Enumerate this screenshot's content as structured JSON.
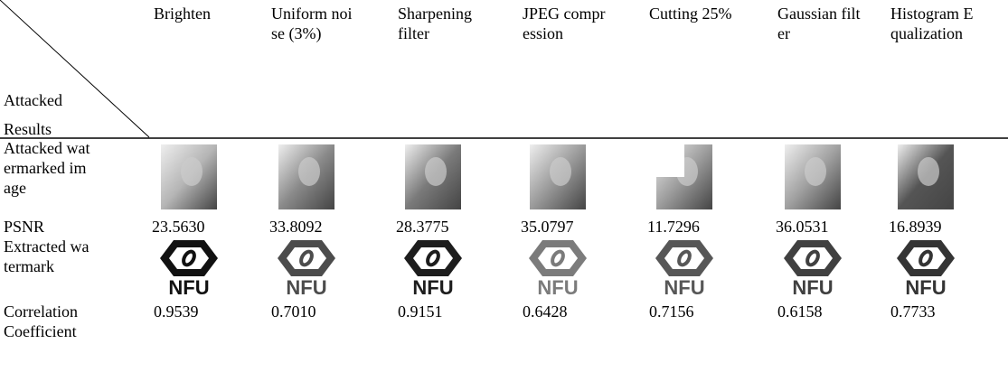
{
  "table": {
    "corner_top": "Attacked",
    "corner_bottom": "Results",
    "columns": [
      "Brighten",
      "Uniform noise (3%)",
      "Sharpening filter",
      "JPEG compression",
      "Cutting 25%",
      "Gaussian filter",
      "Histogram Equalization"
    ],
    "row_labels": [
      "Attacked watermarked image",
      "PSNR",
      "Extracted watermark",
      "Correlation Coefficient"
    ],
    "psnr": [
      "23.5630",
      "33.8092",
      "28.3775",
      "35.0797",
      "11.7296",
      "36.0531",
      "16.8939"
    ],
    "correlation": [
      "0.9539",
      "0.7010",
      "0.9151",
      "0.6428",
      "0.7156",
      "0.6158",
      "0.7733"
    ],
    "watermark_text": "NFU"
  }
}
